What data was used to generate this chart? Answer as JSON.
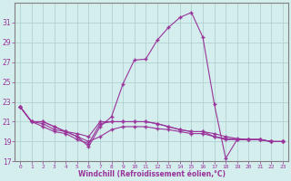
{
  "xlabel": "Windchill (Refroidissement éolien,°C)",
  "hours": [
    0,
    1,
    2,
    3,
    4,
    5,
    6,
    7,
    8,
    9,
    10,
    11,
    12,
    13,
    14,
    15,
    16,
    17,
    18,
    19,
    20,
    21,
    22,
    23
  ],
  "line1": [
    22.5,
    21.0,
    21.0,
    20.5,
    20.0,
    19.5,
    18.5,
    20.5,
    21.5,
    24.8,
    27.2,
    27.3,
    29.2,
    30.5,
    31.5,
    32.0,
    29.5,
    22.8,
    17.3,
    19.2,
    19.2,
    19.2,
    19.0,
    19.0
  ],
  "line2": [
    22.5,
    21.0,
    21.0,
    20.5,
    20.0,
    19.8,
    19.5,
    21.0,
    21.0,
    21.0,
    21.0,
    21.0,
    20.8,
    20.5,
    20.2,
    20.0,
    20.0,
    19.8,
    19.5,
    19.3,
    19.2,
    19.2,
    19.0,
    19.0
  ],
  "line3": [
    22.5,
    21.0,
    20.8,
    20.2,
    20.0,
    19.5,
    19.0,
    19.5,
    20.2,
    20.5,
    20.5,
    20.5,
    20.3,
    20.2,
    20.0,
    19.8,
    19.8,
    19.5,
    19.3,
    19.2,
    19.2,
    19.2,
    19.0,
    19.0
  ],
  "line4": [
    22.5,
    21.0,
    20.5,
    20.0,
    19.8,
    19.2,
    18.8,
    20.8,
    21.0,
    21.0,
    21.0,
    21.0,
    20.8,
    20.5,
    20.2,
    20.0,
    20.0,
    19.5,
    19.2,
    19.2,
    19.2,
    19.2,
    19.0,
    19.0
  ],
  "line_color": "#993399",
  "bg_color": "#d4eeee",
  "grid_color": "#aacccc",
  "ylim": [
    17,
    33
  ],
  "yticks": [
    17,
    19,
    21,
    23,
    25,
    27,
    29,
    31
  ],
  "xlim": [
    -0.5,
    23.5
  ]
}
